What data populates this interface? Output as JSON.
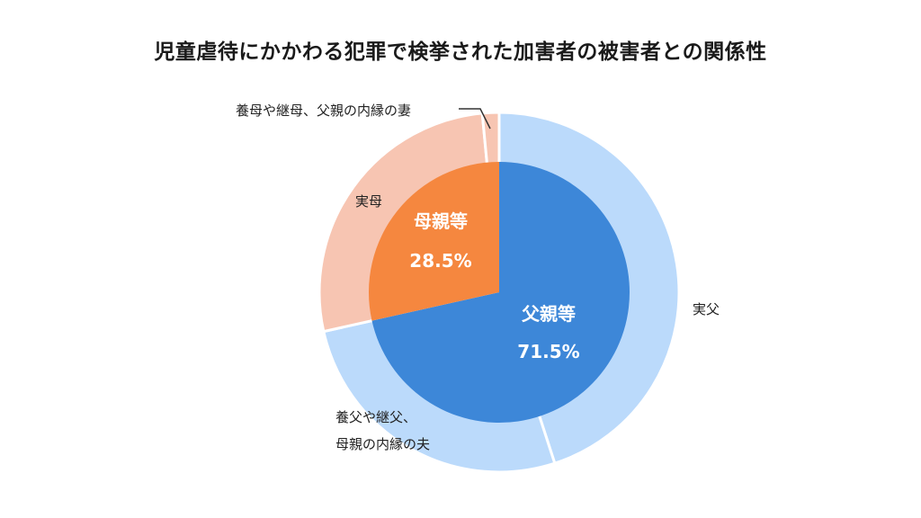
{
  "chart_data": {
    "type": "pie",
    "title": "児童虐待にかかわる犯罪で検挙された加害者の被害者との関係性",
    "inner": {
      "slices": [
        {
          "label": "父親等",
          "value": 71.5,
          "display": "71.5%",
          "color": "#3d87d8"
        },
        {
          "label": "母親等",
          "value": 28.5,
          "display": "28.5%",
          "color": "#f5873f"
        }
      ]
    },
    "outer": {
      "slices": [
        {
          "label": "実父",
          "value": 45.0,
          "color": "#bbdafb"
        },
        {
          "label": "養父や継父、母親の内縁の夫",
          "label_lines": [
            "養父や継父、",
            "母親の内縁の夫"
          ],
          "value": 26.5,
          "color": "#bbdafb"
        },
        {
          "label": "実母",
          "value": 27.0,
          "color": "#f7c5b2"
        },
        {
          "label": "養母や継母、父親の内縁の妻",
          "value": 1.5,
          "color": "#f7c5b2"
        }
      ]
    }
  }
}
